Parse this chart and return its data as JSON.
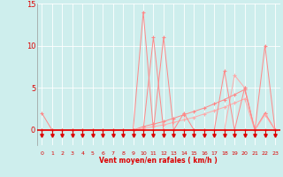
{
  "x": [
    0,
    1,
    2,
    3,
    4,
    5,
    6,
    7,
    8,
    9,
    10,
    11,
    12,
    13,
    14,
    15,
    16,
    17,
    18,
    19,
    20,
    21,
    22,
    23
  ],
  "line_spike": [
    2,
    0,
    0,
    0,
    0,
    0,
    0,
    0,
    0,
    0,
    14,
    0,
    11,
    0,
    0,
    0,
    0,
    0,
    0,
    0,
    0,
    0,
    10,
    0
  ],
  "line_gusts": [
    0,
    0,
    0,
    0,
    0,
    0,
    0,
    0,
    0,
    0,
    0,
    11,
    0,
    0,
    2,
    0,
    0,
    0,
    7,
    0,
    5,
    0,
    0,
    0
  ],
  "line_avg1": [
    0,
    0,
    0,
    0,
    0,
    0,
    0,
    0,
    0,
    0,
    0,
    0,
    0,
    0,
    0,
    0,
    0,
    0,
    0,
    6.5,
    5,
    0,
    2,
    0
  ],
  "line_avg2": [
    0,
    0,
    0,
    0,
    0,
    0,
    0,
    0,
    0,
    0,
    0,
    0,
    0.3,
    0.5,
    0.8,
    1.0,
    1.3,
    1.7,
    2.1,
    2.6,
    3.0,
    0,
    1.8,
    0
  ],
  "line_trend1": [
    0,
    0,
    0,
    0,
    0,
    0,
    0,
    0,
    0,
    0,
    0.4,
    0.7,
    1.0,
    1.4,
    1.8,
    2.2,
    2.6,
    3.1,
    3.6,
    4.2,
    4.8,
    0,
    2,
    0
  ],
  "line_trend2": [
    0,
    0,
    0,
    0,
    0,
    0,
    0,
    0,
    0,
    0,
    0.2,
    0.4,
    0.6,
    0.9,
    1.2,
    1.5,
    1.9,
    2.3,
    2.7,
    3.2,
    3.7,
    0,
    1.8,
    0
  ],
  "xlabel": "Vent moyen/en rafales ( km/h )",
  "bg_color": "#ceeeed",
  "color1": "#ff4444",
  "color2": "#ff8888",
  "color3": "#ffaaaa",
  "color_axis": "#dd0000",
  "ylim_min": 0,
  "ylim_max": 15,
  "xlim_min": 0,
  "xlim_max": 23
}
